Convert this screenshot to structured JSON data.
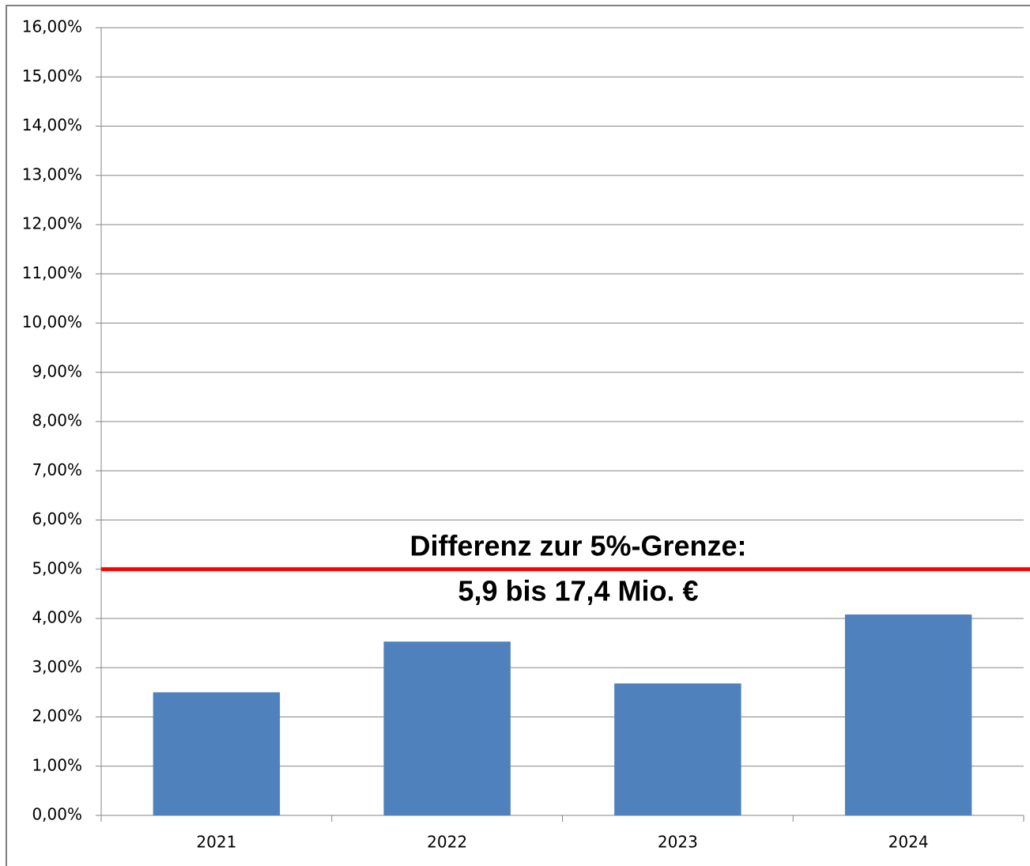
{
  "chart_data": {
    "type": "bar",
    "categories": [
      "2021",
      "2022",
      "2023",
      "2024"
    ],
    "values": [
      2.5,
      3.53,
      2.68,
      4.08
    ],
    "color": "#4f81bd",
    "ylim": [
      0,
      16
    ],
    "yticks": [
      {
        "value": 0,
        "label": "0,00%"
      },
      {
        "value": 1,
        "label": "1,00%"
      },
      {
        "value": 2,
        "label": "2,00%"
      },
      {
        "value": 3,
        "label": "3,00%"
      },
      {
        "value": 4,
        "label": "4,00%"
      },
      {
        "value": 5,
        "label": "5,00%"
      },
      {
        "value": 6,
        "label": "6,00%"
      },
      {
        "value": 7,
        "label": "7,00%"
      },
      {
        "value": 8,
        "label": "8,00%"
      },
      {
        "value": 9,
        "label": "9,00%"
      },
      {
        "value": 10,
        "label": "10,00%"
      },
      {
        "value": 11,
        "label": "11,00%"
      },
      {
        "value": 12,
        "label": "12,00%"
      },
      {
        "value": 13,
        "label": "13,00%"
      },
      {
        "value": 14,
        "label": "14,00%"
      },
      {
        "value": 15,
        "label": "15,00%"
      },
      {
        "value": 16,
        "label": "16,00%"
      }
    ],
    "grid": true,
    "reference_line": {
      "value": 5,
      "color": "#ff0000"
    },
    "annotations": [
      "Differenz zur 5%-Grenze:",
      "5,9 bis 17,4 Mio. €"
    ]
  }
}
